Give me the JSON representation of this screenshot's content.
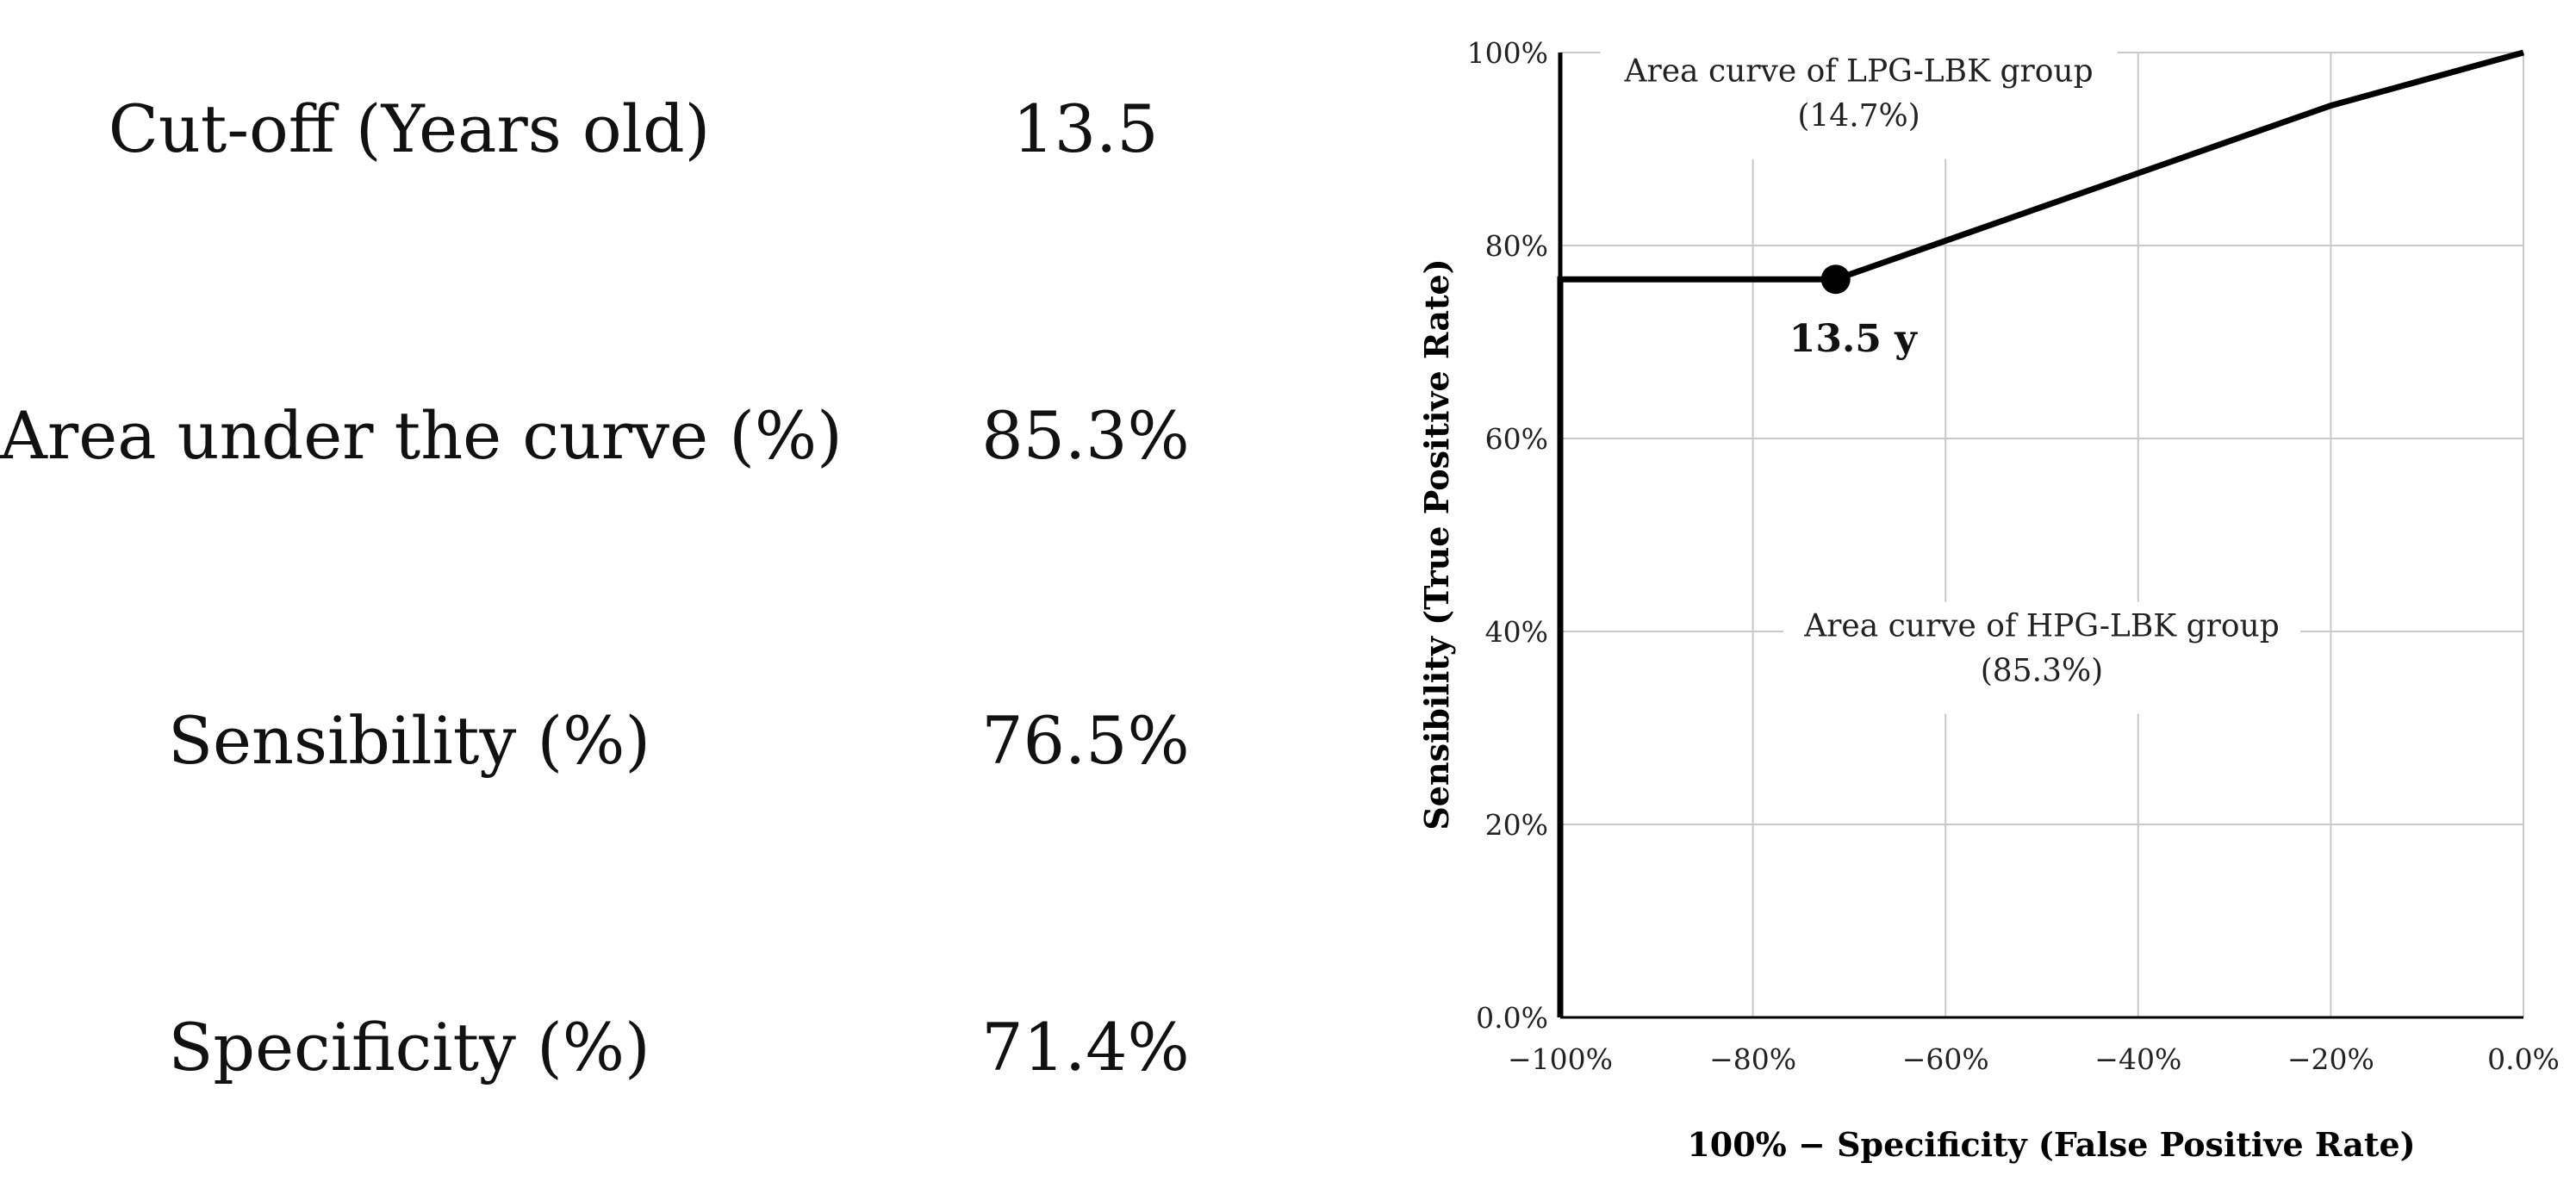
{
  "stats": [
    {
      "label": "Cut-off (Years old)",
      "value": "13.5"
    },
    {
      "label": "Area under the curve (%)",
      "value": "85.3%"
    },
    {
      "label": "Sensibility (%)",
      "value": "76.5%"
    },
    {
      "label": "Specificity (%)",
      "value": "71.4%"
    }
  ],
  "chart_data": {
    "type": "line",
    "xlabel": "100% − Specificity (False Positive Rate)",
    "ylabel": "Sensibility (True Positive Rate)",
    "xlim": [
      -100,
      0
    ],
    "ylim": [
      0,
      100
    ],
    "x_ticks": [
      -100,
      -80,
      -60,
      -40,
      -20,
      0
    ],
    "x_tick_labels": [
      "−100%",
      "−80%",
      "−60%",
      "−40%",
      "−20%",
      "0.0%"
    ],
    "y_ticks": [
      0,
      20,
      40,
      60,
      80,
      100
    ],
    "y_tick_labels": [
      "0.0%",
      "20%",
      "40%",
      "60%",
      "80%",
      "100%"
    ],
    "grid": true,
    "series": [
      {
        "x": [
          -100,
          -100,
          -71.4,
          -20,
          0
        ],
        "y": [
          0,
          76.5,
          76.5,
          94.5,
          100
        ],
        "color": "#000000"
      }
    ],
    "marker": {
      "x": -71.4,
      "y": 76.5,
      "label": "13.5 y"
    },
    "annotations": [
      {
        "line1": "Area curve of LPG-LBK group",
        "line2": "(14.7%)",
        "x": -69,
        "y": 97
      },
      {
        "line1": "Area curve of HPG-LBK group",
        "line2": "(85.3%)",
        "x": -50,
        "y": 39.5
      }
    ]
  }
}
